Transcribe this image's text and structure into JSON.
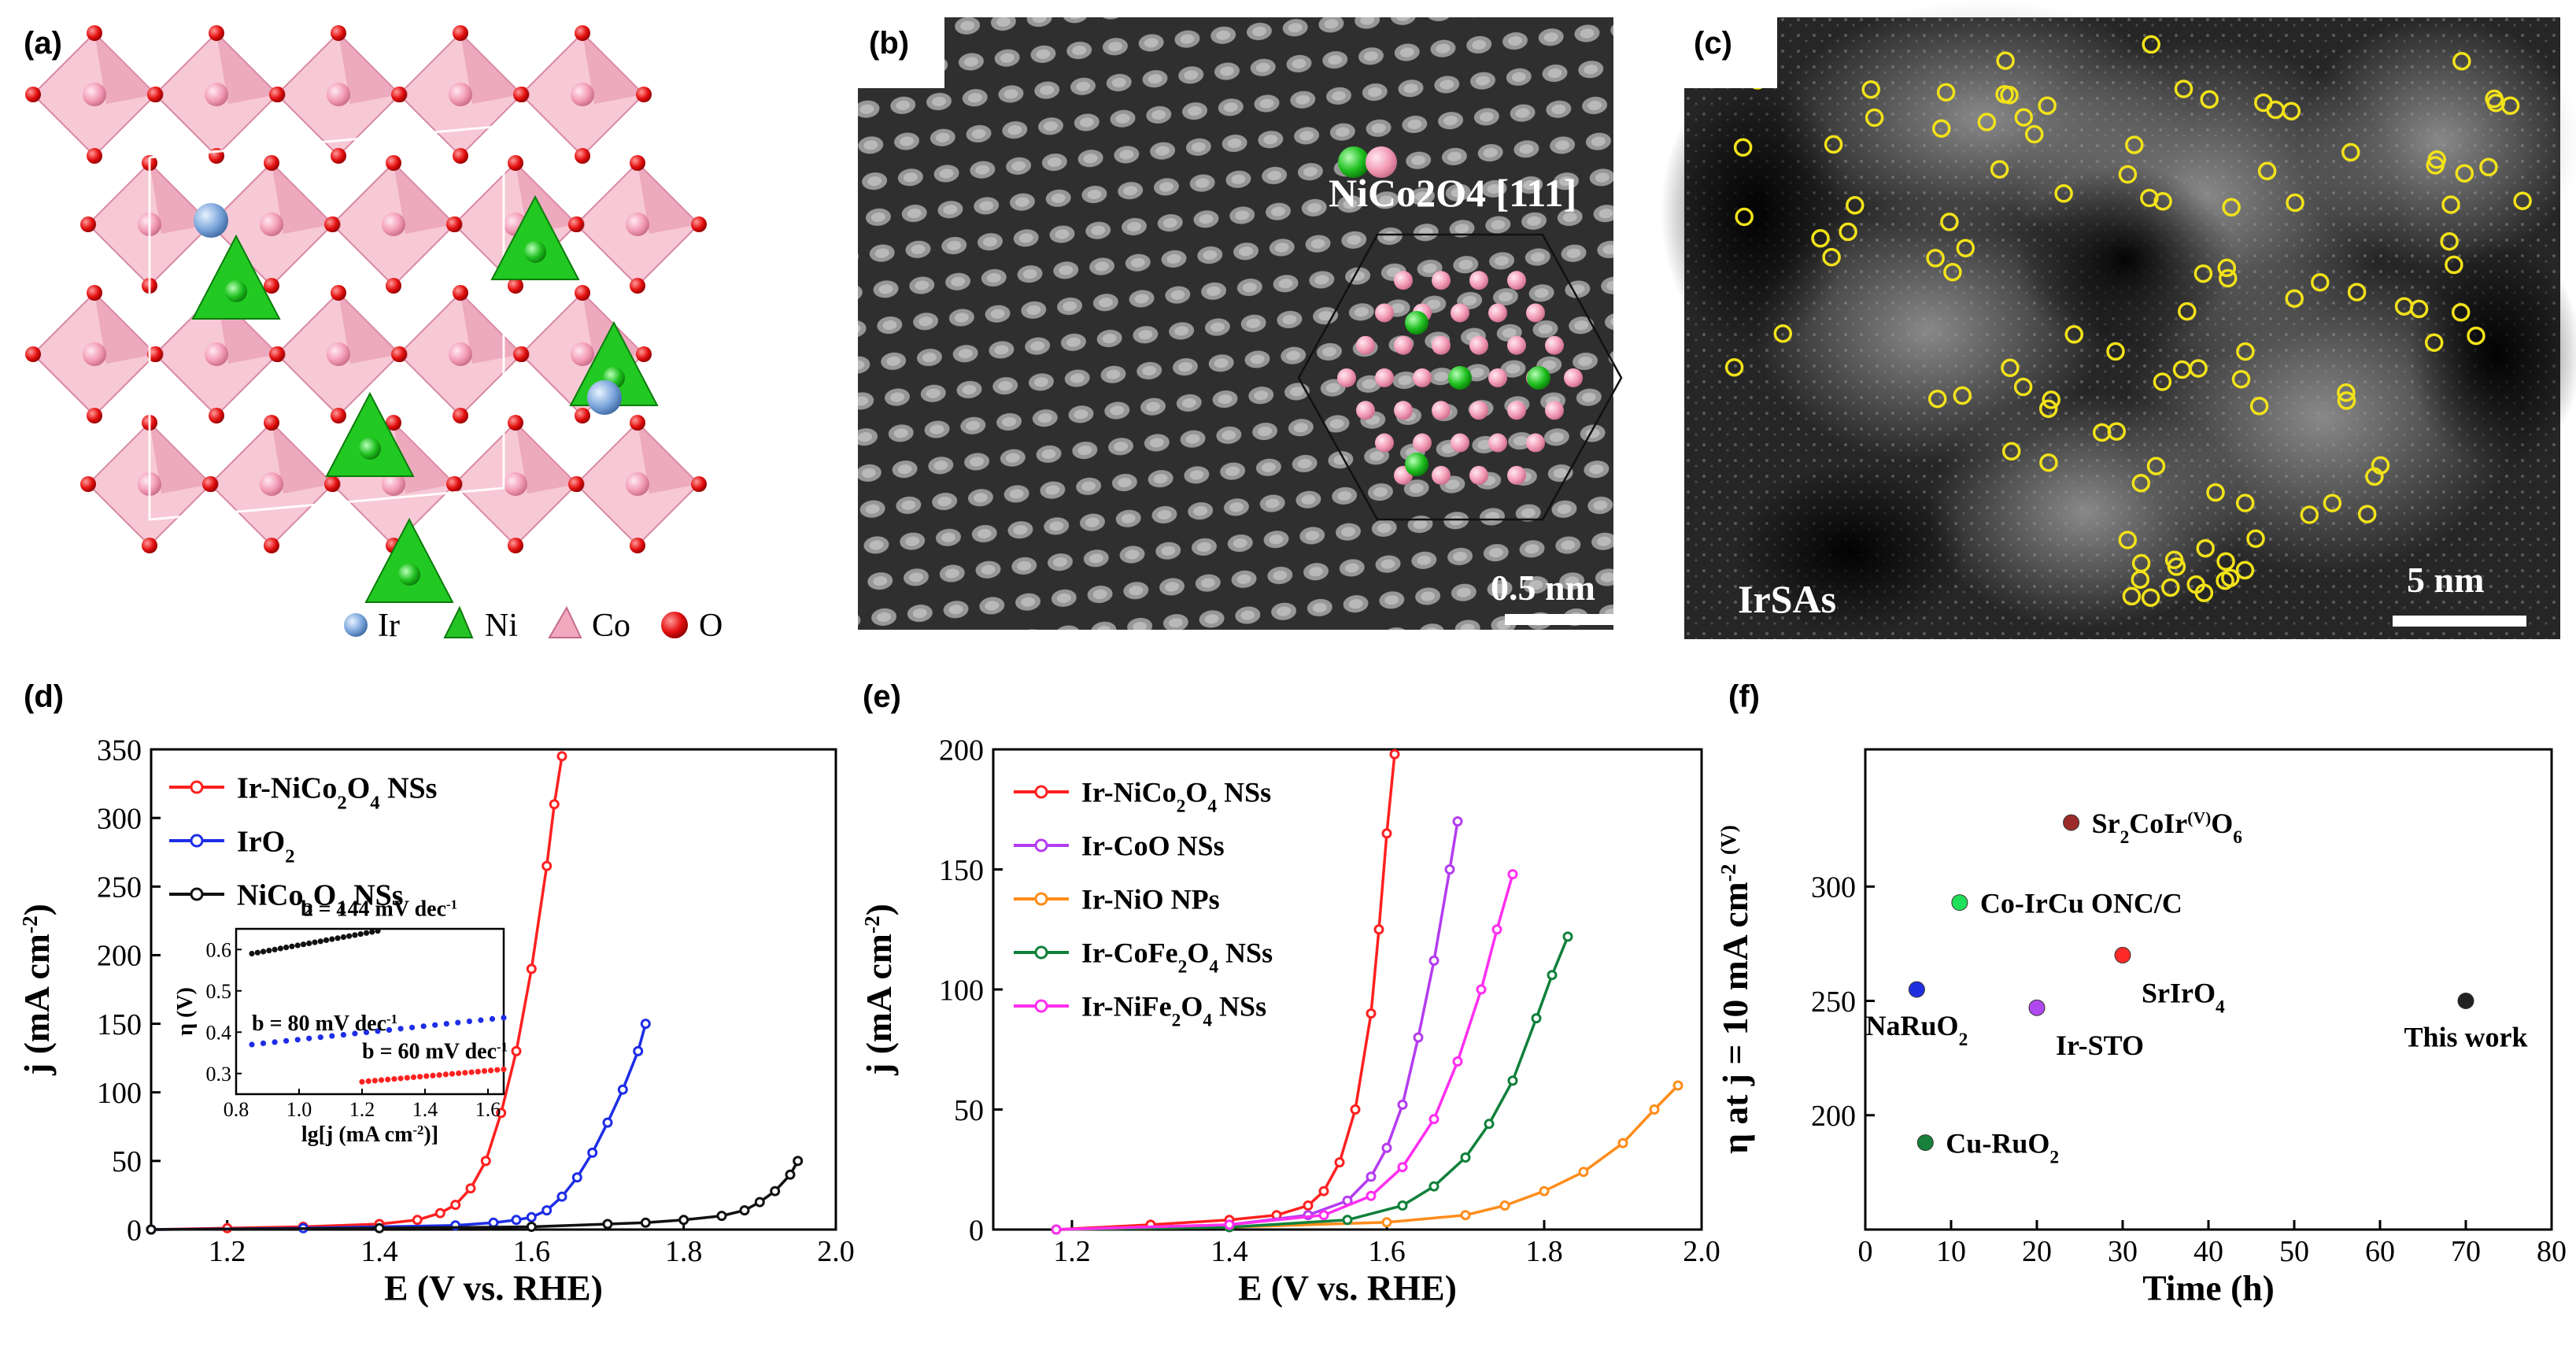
{
  "panel_labels": [
    "(a)",
    "(b)",
    "(c)",
    "(d)",
    "(e)",
    "(f)"
  ],
  "structure_legend": [
    {
      "label": "Ir",
      "color": "#6f9ed8"
    },
    {
      "label": "Ni",
      "color": "#25c425"
    },
    {
      "label": "Co",
      "color": "#f2a8be"
    },
    {
      "label": "O",
      "color": "#e00e0e"
    }
  ],
  "tem_b": {
    "phase_label": "NiCo2O4 [111]",
    "scale_bar": "0.5 nm"
  },
  "tem_c": {
    "label": "IrSAs",
    "scale_bar": "5 nm"
  },
  "chart_data": [
    {
      "panel": "(d)",
      "type": "line",
      "xlabel": "E (V vs. RHE)",
      "ylabel": "j (mA cm-2)",
      "xlim": [
        1.1,
        2.0
      ],
      "ylim": [
        0,
        350
      ],
      "xticks": [
        1.2,
        1.4,
        1.6,
        1.8,
        2.0
      ],
      "yticks": [
        0,
        50,
        100,
        150,
        200,
        250,
        300,
        350
      ],
      "series": [
        {
          "name": "Ir-NiCo2O4 NSs",
          "color": "#ff2020",
          "x": [
            1.1,
            1.2,
            1.3,
            1.4,
            1.45,
            1.48,
            1.5,
            1.52,
            1.54,
            1.56,
            1.58,
            1.6,
            1.62,
            1.63,
            1.64
          ],
          "y": [
            0,
            1,
            2,
            4,
            7,
            12,
            18,
            30,
            50,
            85,
            130,
            190,
            265,
            310,
            345
          ]
        },
        {
          "name": "IrO2",
          "color": "#1e2de6",
          "x": [
            1.1,
            1.3,
            1.5,
            1.55,
            1.58,
            1.6,
            1.62,
            1.64,
            1.66,
            1.68,
            1.7,
            1.72,
            1.74,
            1.75
          ],
          "y": [
            0,
            1,
            3,
            5,
            7,
            9,
            14,
            24,
            38,
            56,
            78,
            102,
            130,
            150
          ]
        },
        {
          "name": "NiCo2O4 NSs",
          "color": "#111111",
          "x": [
            1.1,
            1.4,
            1.6,
            1.7,
            1.75,
            1.8,
            1.85,
            1.88,
            1.9,
            1.92,
            1.94,
            1.95
          ],
          "y": [
            0,
            1,
            2,
            4,
            5,
            7,
            10,
            14,
            20,
            28,
            40,
            50
          ]
        }
      ],
      "inset": {
        "xlabel": "lg[j (mA cm-2)]",
        "ylabel": "η (V)",
        "xlim": [
          0.8,
          1.65
        ],
        "ylim": [
          0.25,
          0.65
        ],
        "xticks": [
          0.8,
          1.0,
          1.2,
          1.4,
          1.6
        ],
        "yticks": [
          0.3,
          0.4,
          0.5,
          0.6
        ],
        "series": [
          {
            "name": "NiCo2O4 NSs",
            "color": "#111111",
            "x": [
              0.85,
              1.25
            ],
            "y": [
              0.59,
              0.645
            ],
            "annotation": "b = 144 mV dec-1"
          },
          {
            "name": "IrO2",
            "color": "#1e2de6",
            "x": [
              0.85,
              1.65
            ],
            "y": [
              0.37,
              0.435
            ],
            "annotation": "b = 80 mV dec-1"
          },
          {
            "name": "Ir-NiCo2O4 NSs",
            "color": "#ff2020",
            "x": [
              1.2,
              1.65
            ],
            "y": [
              0.28,
              0.31
            ],
            "annotation": "b = 60 mV dec-1"
          }
        ]
      }
    },
    {
      "panel": "(e)",
      "type": "line",
      "xlabel": "E (V vs. RHE)",
      "ylabel": "j (mA cm-2)",
      "xlim": [
        1.1,
        2.0
      ],
      "ylim": [
        0,
        200
      ],
      "xticks": [
        1.2,
        1.4,
        1.6,
        1.8,
        2.0
      ],
      "yticks": [
        0,
        50,
        100,
        150,
        200
      ],
      "series": [
        {
          "name": "Ir-NiCo2O4 NSs",
          "color": "#ff2020",
          "x": [
            1.18,
            1.3,
            1.4,
            1.46,
            1.5,
            1.52,
            1.54,
            1.56,
            1.58,
            1.59,
            1.6,
            1.61
          ],
          "y": [
            0,
            2,
            4,
            6,
            10,
            16,
            28,
            50,
            90,
            125,
            165,
            198
          ]
        },
        {
          "name": "Ir-CoO NSs",
          "color": "#b43cf0",
          "x": [
            1.18,
            1.4,
            1.5,
            1.55,
            1.58,
            1.6,
            1.62,
            1.64,
            1.66,
            1.68,
            1.69
          ],
          "y": [
            0,
            2,
            6,
            12,
            22,
            34,
            52,
            80,
            112,
            150,
            170
          ]
        },
        {
          "name": "Ir-NiO NPs",
          "color": "#ff8c1a",
          "x": [
            1.18,
            1.4,
            1.6,
            1.7,
            1.75,
            1.8,
            1.85,
            1.9,
            1.94,
            1.97
          ],
          "y": [
            0,
            1,
            3,
            6,
            10,
            16,
            24,
            36,
            50,
            60
          ]
        },
        {
          "name": "Ir-CoFe2O4 NSs",
          "color": "#10803a",
          "x": [
            1.18,
            1.4,
            1.55,
            1.62,
            1.66,
            1.7,
            1.73,
            1.76,
            1.79,
            1.81,
            1.83
          ],
          "y": [
            0,
            1,
            4,
            10,
            18,
            30,
            44,
            62,
            88,
            106,
            122
          ]
        },
        {
          "name": "Ir-NiFe2O4 NSs",
          "color": "#ff2ef0",
          "x": [
            1.18,
            1.4,
            1.52,
            1.58,
            1.62,
            1.66,
            1.69,
            1.72,
            1.74,
            1.76
          ],
          "y": [
            0,
            2,
            6,
            14,
            26,
            46,
            70,
            100,
            125,
            148
          ]
        }
      ]
    },
    {
      "panel": "(f)",
      "type": "scatter",
      "xlabel": "Time (h)",
      "ylabel": "η at j = 10 mA cm-2 (V)",
      "xlim": [
        0,
        80
      ],
      "ylim": [
        150,
        360
      ],
      "xticks": [
        0,
        10,
        20,
        30,
        40,
        50,
        60,
        70,
        80
      ],
      "yticks": [
        200,
        250,
        300
      ],
      "points": [
        {
          "name": "Sr2CoIr(V)O6",
          "x": 24,
          "y": 328,
          "color": "#9c2a2a",
          "label_pos": "right"
        },
        {
          "name": "Co-IrCu ONC/C",
          "x": 11,
          "y": 293,
          "color": "#1ee05a",
          "label_pos": "right"
        },
        {
          "name": "SrIrO4",
          "x": 30,
          "y": 270,
          "color": "#ff2a2a",
          "label_pos": "below-right"
        },
        {
          "name": "NaRuO2",
          "x": 6,
          "y": 255,
          "color": "#1f2fe0",
          "label_pos": "below"
        },
        {
          "name": "Ir-STO",
          "x": 20,
          "y": 247,
          "color": "#b048f0",
          "label_pos": "below-right"
        },
        {
          "name": "This work",
          "x": 70,
          "y": 250,
          "color": "#222222",
          "label_pos": "below"
        },
        {
          "name": "Cu-RuO2",
          "x": 7,
          "y": 188,
          "color": "#17803a",
          "label_pos": "right"
        }
      ]
    }
  ]
}
